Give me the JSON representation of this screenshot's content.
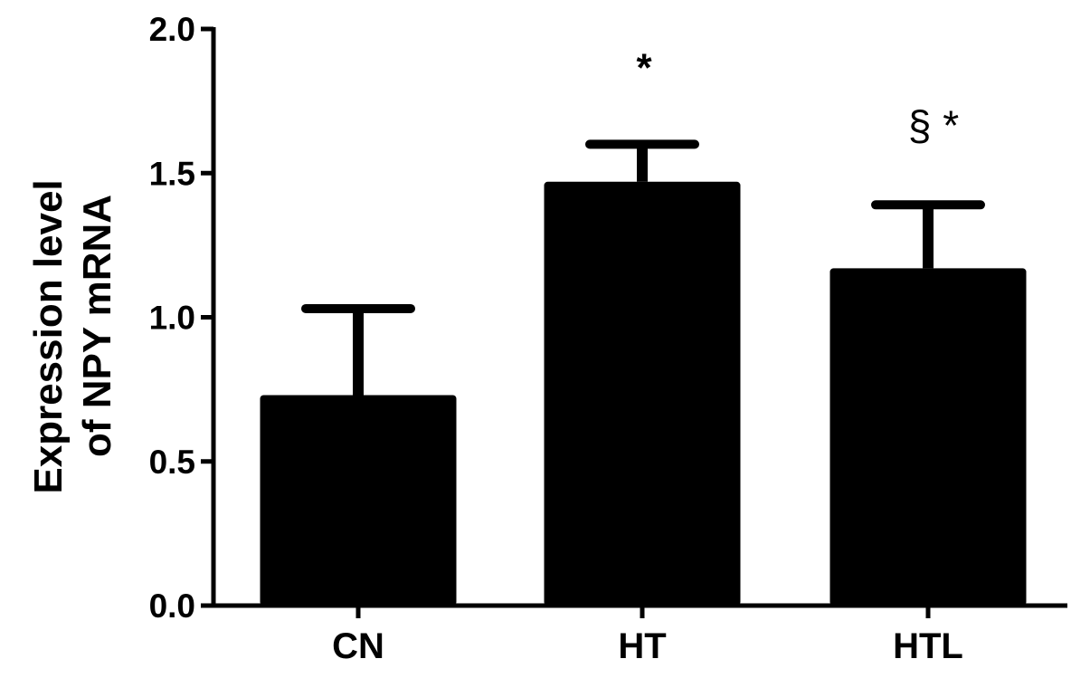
{
  "chart_data": {
    "type": "bar",
    "categories": [
      "CN",
      "HT",
      "HTL"
    ],
    "values": [
      0.73,
      1.47,
      1.17
    ],
    "errors": [
      0.3,
      0.13,
      0.22
    ],
    "annotations": [
      {
        "category": "HT",
        "text": "*"
      },
      {
        "category": "HTL",
        "text": "§  *"
      }
    ],
    "ylabel_line1": "Expression  level",
    "ylabel_line2": "of NPY mRNA",
    "ylim": [
      0,
      2.0
    ],
    "yticks": [
      "0.0",
      "0.5",
      "1.0",
      "1.5",
      "2.0"
    ],
    "ytick_values": [
      0,
      0.5,
      1.0,
      1.5,
      2.0
    ],
    "bar_color": "#000000",
    "grid": false
  }
}
